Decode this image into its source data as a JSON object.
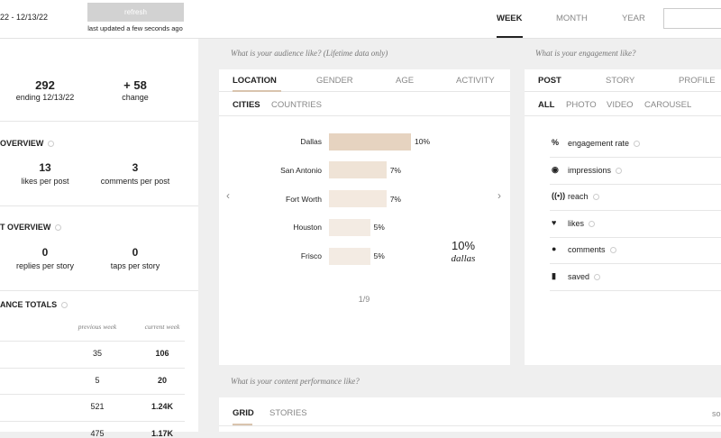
{
  "header": {
    "date_range": "22 - 12/13/22",
    "refresh": "refresh",
    "updated": "last updated a few seconds ago",
    "periods": [
      "WEEK",
      "MONTH",
      "YEAR"
    ]
  },
  "summary": {
    "total": "292",
    "total_label": "ending 12/13/22",
    "change": "+ 58",
    "change_label": "change"
  },
  "post_overview": {
    "title": "OVERVIEW",
    "stats": [
      {
        "value": "13",
        "label": "likes per post"
      },
      {
        "value": "3",
        "label": "comments per post"
      }
    ]
  },
  "story_overview": {
    "title": "T OVERVIEW",
    "stats": [
      {
        "value": "0",
        "label": "replies per story"
      },
      {
        "value": "0",
        "label": "taps per story"
      }
    ]
  },
  "totals": {
    "title": "ANCE TOTALS",
    "columns": [
      "previous week",
      "current week"
    ],
    "rows": [
      [
        "35",
        "106"
      ],
      [
        "5",
        "20"
      ],
      [
        "521",
        "1.24K"
      ],
      [
        "475",
        "1.17K"
      ]
    ]
  },
  "audience": {
    "title": "What is your audience like? (Lifetime data only)",
    "tabs": [
      "LOCATION",
      "GENDER",
      "AGE",
      "ACTIVITY"
    ],
    "subtabs": [
      "CITIES",
      "COUNTRIES"
    ],
    "cities": [
      {
        "name": "Dallas",
        "value": 10,
        "label": "10%"
      },
      {
        "name": "San Antonio",
        "value": 7,
        "label": "7%"
      },
      {
        "name": "Fort Worth",
        "value": 7,
        "label": "7%"
      },
      {
        "name": "Houston",
        "value": 5,
        "label": "5%"
      },
      {
        "name": "Frisco",
        "value": 5,
        "label": "5%"
      }
    ],
    "highlight": {
      "value": "10%",
      "name": "dallas"
    },
    "page": "1/9"
  },
  "engagement": {
    "title": "What is your engagement like?",
    "tabs": [
      "POST",
      "STORY",
      "PROFILE"
    ],
    "subtabs": [
      "ALL",
      "PHOTO",
      "VIDEO",
      "CAROUSEL"
    ],
    "metrics": [
      "engagement rate",
      "impressions",
      "reach",
      "likes",
      "comments",
      "saved"
    ]
  },
  "content": {
    "title": "What is your content performance like?",
    "tabs": [
      "GRID",
      "STORIES"
    ],
    "sort": "so"
  }
}
